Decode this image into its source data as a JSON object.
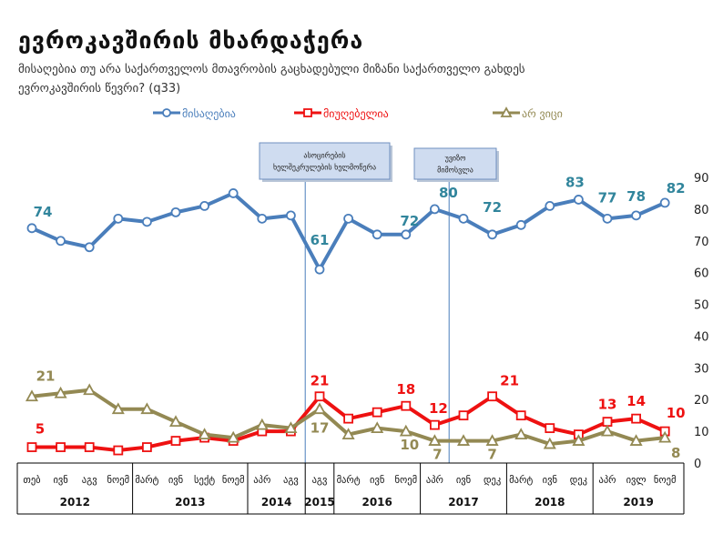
{
  "title": "ევროკავშირის მხარდაჭერა",
  "subtitle": "მისაღებია თუ არა საქართველოს მთავრობის გაცხადებული მიზანი საქართველო გახდეს ევროკავშირის წევრი? (q33)",
  "chart_data": {
    "type": "line",
    "ylim": [
      0,
      90
    ],
    "yticks": [
      0,
      10,
      20,
      30,
      40,
      50,
      60,
      70,
      80,
      90
    ],
    "grid": false,
    "legend_position": "top",
    "series": [
      {
        "name": "მისაღებია",
        "color": "#4a7ebb",
        "marker": "circle",
        "values": [
          74,
          70,
          68,
          77,
          76,
          79,
          81,
          85,
          77,
          78,
          61,
          77,
          72,
          72,
          80,
          77,
          72,
          75,
          81,
          83,
          77,
          78,
          82
        ]
      },
      {
        "name": "მიუღებელია",
        "color": "#ee1111",
        "marker": "square",
        "values": [
          5,
          5,
          5,
          4,
          5,
          7,
          8,
          7,
          10,
          10,
          21,
          14,
          16,
          18,
          12,
          15,
          21,
          15,
          11,
          9,
          13,
          14,
          10
        ]
      },
      {
        "name": "არ ვიცი",
        "color": "#938953",
        "marker": "triangle",
        "values": [
          21,
          22,
          23,
          17,
          17,
          13,
          9,
          8,
          12,
          11,
          17,
          9,
          11,
          10,
          7,
          7,
          7,
          9,
          6,
          7,
          10,
          7,
          8
        ]
      }
    ],
    "data_labels": [
      {
        "series": 0,
        "index": 0,
        "text": "74"
      },
      {
        "series": 0,
        "index": 10,
        "text": "61"
      },
      {
        "series": 0,
        "index": 13,
        "text": "72"
      },
      {
        "series": 0,
        "index": 14,
        "text": "80"
      },
      {
        "series": 0,
        "index": 16,
        "text": "72"
      },
      {
        "series": 0,
        "index": 19,
        "text": "83"
      },
      {
        "series": 0,
        "index": 20,
        "text": "77"
      },
      {
        "series": 0,
        "index": 21,
        "text": "78"
      },
      {
        "series": 0,
        "index": 22,
        "text": "82"
      },
      {
        "series": 1,
        "index": 0,
        "text": "5"
      },
      {
        "series": 1,
        "index": 10,
        "text": "21"
      },
      {
        "series": 1,
        "index": 13,
        "text": "18"
      },
      {
        "series": 1,
        "index": 14,
        "text": "12"
      },
      {
        "series": 1,
        "index": 16,
        "text": "21"
      },
      {
        "series": 1,
        "index": 20,
        "text": "13"
      },
      {
        "series": 1,
        "index": 21,
        "text": "14"
      },
      {
        "series": 1,
        "index": 22,
        "text": "10"
      },
      {
        "series": 2,
        "index": 0,
        "text": "21"
      },
      {
        "series": 2,
        "index": 10,
        "text": "17"
      },
      {
        "series": 2,
        "index": 13,
        "text": "10"
      },
      {
        "series": 2,
        "index": 14,
        "text": "7"
      },
      {
        "series": 2,
        "index": 16,
        "text": "7"
      },
      {
        "series": 2,
        "index": 22,
        "text": "8"
      }
    ],
    "month_labels": [
      "თებ",
      "ივნ",
      "აგვ",
      "ნოემ",
      "მარტ",
      "ივნ",
      "სექტ",
      "ნოემ",
      "აპრ",
      "აგვ",
      "აგვ",
      "მარტ",
      "ივნ",
      "ნოემ",
      "აპრ",
      "ივნ",
      "დეკ",
      "მარტ",
      "ივნ",
      "დეკ",
      "აპრ",
      "ივლ",
      "ნოემ"
    ],
    "year_groups": [
      {
        "label": "2012",
        "from": 0,
        "to": 3
      },
      {
        "label": "2013",
        "from": 4,
        "to": 7
      },
      {
        "label": "2014",
        "from": 8,
        "to": 9
      },
      {
        "label": "2015",
        "from": 10,
        "to": 10
      },
      {
        "label": "2016",
        "from": 11,
        "to": 13
      },
      {
        "label": "2017",
        "from": 14,
        "to": 16
      },
      {
        "label": "2018",
        "from": 17,
        "to": 19
      },
      {
        "label": "2019",
        "from": 20,
        "to": 22
      }
    ],
    "annotations": [
      {
        "text_lines": [
          "ასოცირების",
          "ხელშეკრულების ხელმოწერა"
        ],
        "after_index": 9
      },
      {
        "text_lines": [
          "უვიზო",
          "მიმოსვლა"
        ],
        "after_index": 14
      }
    ]
  }
}
